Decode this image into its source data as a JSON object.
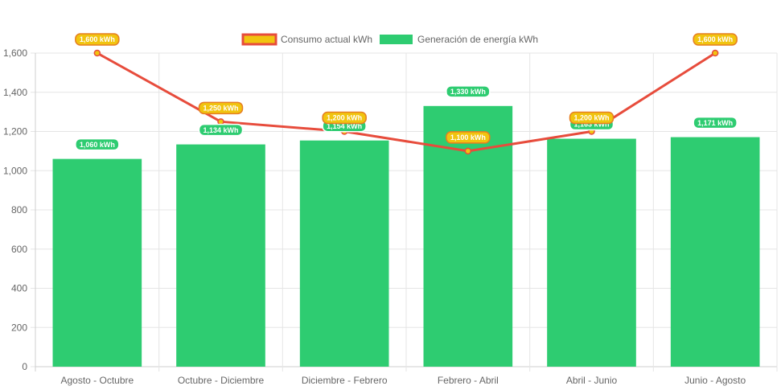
{
  "chart_data": {
    "type": "bar",
    "categories": [
      "Agosto - Octubre",
      "Octubre - Diciembre",
      "Diciembre - Febrero",
      "Febrero - Abril",
      "Abril - Junio",
      "Junio - Agosto"
    ],
    "series": [
      {
        "name": "Consumo actual kWh",
        "type": "line",
        "values": [
          1600,
          1250,
          1200,
          1100,
          1200,
          1600
        ],
        "labels": [
          "1,600 kWh",
          "1,250 kWh",
          "1,200 kWh",
          "1,100 kWh",
          "1,200 kWh",
          "1,600 kWh"
        ],
        "line_color": "#e74c3c",
        "label_color": "#f1c40f",
        "label_border": "#e67e22"
      },
      {
        "name": "Generación de energía kWh",
        "type": "bar",
        "values": [
          1060,
          1134,
          1154,
          1330,
          1163,
          1171
        ],
        "labels": [
          "1,060 kWh",
          "1,134 kWh",
          "1,154 kWh",
          "1,330 kWh",
          "1,163 kWh",
          "1,171 kWh"
        ],
        "color": "#2ecc71"
      }
    ],
    "y_ticks": [
      "0",
      "200",
      "400",
      "600",
      "800",
      "1,000",
      "1,200",
      "1,400",
      "1,600"
    ],
    "ylim": [
      0,
      1600
    ],
    "y_step": 200,
    "grid": true,
    "legend_position": "top-center",
    "title": "",
    "xlabel": "",
    "ylabel": ""
  }
}
